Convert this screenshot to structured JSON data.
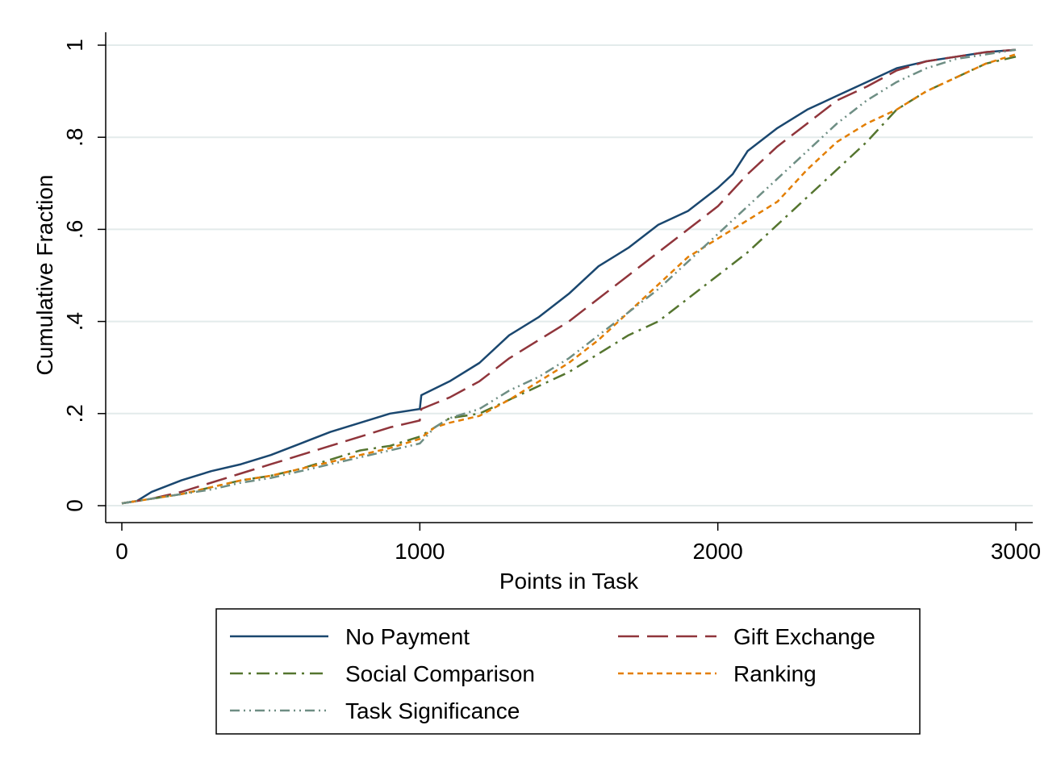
{
  "chart_data": {
    "type": "line",
    "xlabel": "Points in Task",
    "ylabel": "Cumulative Fraction",
    "xlim": [
      0,
      3000
    ],
    "ylim": [
      0,
      1
    ],
    "xticks": [
      0,
      1000,
      2000,
      3000
    ],
    "xtick_labels": [
      "0",
      "1000",
      "2000",
      "3000"
    ],
    "yticks": [
      0,
      0.2,
      0.4,
      0.6,
      0.8,
      1
    ],
    "ytick_labels": [
      "0",
      ".2",
      ".4",
      ".6",
      ".8",
      "1"
    ],
    "grid": true,
    "legend_position": "bottom",
    "series": [
      {
        "name": "No Payment",
        "color": "#1a476f",
        "dash": "solid",
        "points": [
          [
            0,
            0.005
          ],
          [
            50,
            0.01
          ],
          [
            100,
            0.03
          ],
          [
            200,
            0.055
          ],
          [
            300,
            0.075
          ],
          [
            400,
            0.09
          ],
          [
            500,
            0.11
          ],
          [
            600,
            0.135
          ],
          [
            700,
            0.16
          ],
          [
            800,
            0.18
          ],
          [
            900,
            0.2
          ],
          [
            1000,
            0.21
          ],
          [
            1005,
            0.24
          ],
          [
            1100,
            0.27
          ],
          [
            1200,
            0.31
          ],
          [
            1300,
            0.37
          ],
          [
            1400,
            0.41
          ],
          [
            1500,
            0.46
          ],
          [
            1600,
            0.52
          ],
          [
            1700,
            0.56
          ],
          [
            1800,
            0.61
          ],
          [
            1900,
            0.64
          ],
          [
            2000,
            0.69
          ],
          [
            2050,
            0.72
          ],
          [
            2100,
            0.77
          ],
          [
            2200,
            0.82
          ],
          [
            2300,
            0.86
          ],
          [
            2400,
            0.89
          ],
          [
            2500,
            0.92
          ],
          [
            2600,
            0.95
          ],
          [
            2700,
            0.965
          ],
          [
            2800,
            0.975
          ],
          [
            2900,
            0.985
          ],
          [
            3000,
            0.99
          ]
        ]
      },
      {
        "name": "Gift Exchange",
        "color": "#90353b",
        "dash": "longdash",
        "points": [
          [
            0,
            0.005
          ],
          [
            100,
            0.015
          ],
          [
            200,
            0.03
          ],
          [
            300,
            0.05
          ],
          [
            400,
            0.07
          ],
          [
            500,
            0.09
          ],
          [
            600,
            0.11
          ],
          [
            700,
            0.13
          ],
          [
            800,
            0.15
          ],
          [
            900,
            0.17
          ],
          [
            1000,
            0.185
          ],
          [
            1005,
            0.21
          ],
          [
            1100,
            0.235
          ],
          [
            1200,
            0.27
          ],
          [
            1300,
            0.32
          ],
          [
            1400,
            0.36
          ],
          [
            1500,
            0.4
          ],
          [
            1600,
            0.45
          ],
          [
            1700,
            0.5
          ],
          [
            1800,
            0.55
          ],
          [
            1900,
            0.6
          ],
          [
            2000,
            0.65
          ],
          [
            2100,
            0.72
          ],
          [
            2200,
            0.78
          ],
          [
            2300,
            0.83
          ],
          [
            2400,
            0.88
          ],
          [
            2500,
            0.91
          ],
          [
            2600,
            0.945
          ],
          [
            2700,
            0.965
          ],
          [
            2800,
            0.975
          ],
          [
            2900,
            0.985
          ],
          [
            3000,
            0.99
          ]
        ]
      },
      {
        "name": "Social Comparison",
        "color": "#55752f",
        "dash": "dashdot",
        "points": [
          [
            0,
            0.005
          ],
          [
            100,
            0.015
          ],
          [
            200,
            0.025
          ],
          [
            300,
            0.04
          ],
          [
            400,
            0.055
          ],
          [
            500,
            0.065
          ],
          [
            600,
            0.08
          ],
          [
            700,
            0.1
          ],
          [
            800,
            0.12
          ],
          [
            900,
            0.13
          ],
          [
            1000,
            0.15
          ],
          [
            1100,
            0.19
          ],
          [
            1200,
            0.2
          ],
          [
            1300,
            0.23
          ],
          [
            1400,
            0.26
          ],
          [
            1500,
            0.29
          ],
          [
            1600,
            0.33
          ],
          [
            1700,
            0.37
          ],
          [
            1800,
            0.4
          ],
          [
            1900,
            0.45
          ],
          [
            2000,
            0.5
          ],
          [
            2100,
            0.55
          ],
          [
            2200,
            0.61
          ],
          [
            2300,
            0.67
          ],
          [
            2400,
            0.73
          ],
          [
            2500,
            0.79
          ],
          [
            2600,
            0.86
          ],
          [
            2700,
            0.9
          ],
          [
            2800,
            0.93
          ],
          [
            2900,
            0.96
          ],
          [
            3000,
            0.975
          ]
        ]
      },
      {
        "name": "Ranking",
        "color": "#e37e00",
        "dash": "shortdash",
        "points": [
          [
            0,
            0.005
          ],
          [
            100,
            0.015
          ],
          [
            200,
            0.025
          ],
          [
            300,
            0.04
          ],
          [
            400,
            0.055
          ],
          [
            500,
            0.065
          ],
          [
            600,
            0.08
          ],
          [
            700,
            0.095
          ],
          [
            800,
            0.11
          ],
          [
            900,
            0.125
          ],
          [
            1000,
            0.145
          ],
          [
            1050,
            0.17
          ],
          [
            1100,
            0.18
          ],
          [
            1200,
            0.195
          ],
          [
            1300,
            0.23
          ],
          [
            1400,
            0.27
          ],
          [
            1500,
            0.31
          ],
          [
            1600,
            0.36
          ],
          [
            1700,
            0.42
          ],
          [
            1800,
            0.48
          ],
          [
            1900,
            0.54
          ],
          [
            2000,
            0.58
          ],
          [
            2100,
            0.62
          ],
          [
            2200,
            0.66
          ],
          [
            2300,
            0.73
          ],
          [
            2400,
            0.79
          ],
          [
            2500,
            0.83
          ],
          [
            2600,
            0.86
          ],
          [
            2700,
            0.9
          ],
          [
            2800,
            0.93
          ],
          [
            2900,
            0.96
          ],
          [
            3000,
            0.98
          ]
        ]
      },
      {
        "name": "Task Significance",
        "color": "#6e8e84",
        "dash": "dashdotdot",
        "points": [
          [
            0,
            0.005
          ],
          [
            100,
            0.015
          ],
          [
            200,
            0.025
          ],
          [
            300,
            0.035
          ],
          [
            400,
            0.05
          ],
          [
            500,
            0.06
          ],
          [
            600,
            0.075
          ],
          [
            700,
            0.09
          ],
          [
            800,
            0.105
          ],
          [
            900,
            0.12
          ],
          [
            1000,
            0.135
          ],
          [
            1050,
            0.17
          ],
          [
            1100,
            0.19
          ],
          [
            1200,
            0.21
          ],
          [
            1300,
            0.25
          ],
          [
            1400,
            0.28
          ],
          [
            1500,
            0.32
          ],
          [
            1600,
            0.37
          ],
          [
            1700,
            0.42
          ],
          [
            1800,
            0.47
          ],
          [
            1900,
            0.53
          ],
          [
            2000,
            0.59
          ],
          [
            2100,
            0.65
          ],
          [
            2200,
            0.71
          ],
          [
            2300,
            0.77
          ],
          [
            2400,
            0.83
          ],
          [
            2500,
            0.88
          ],
          [
            2600,
            0.92
          ],
          [
            2700,
            0.95
          ],
          [
            2800,
            0.97
          ],
          [
            2900,
            0.98
          ],
          [
            3000,
            0.99
          ]
        ]
      }
    ]
  }
}
